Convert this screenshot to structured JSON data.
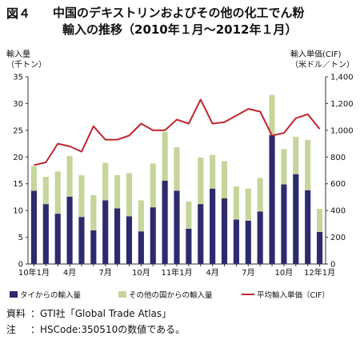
{
  "figure": {
    "label": "図４",
    "title_line1": "中国のデキストリンおよびその他の化工でん粉",
    "title_line2": "輸入の推移（2010年１月～2012年１月）"
  },
  "axis_labels": {
    "left_title": "輸入量",
    "left_unit": "（千トン）",
    "right_title": "輸入単価(CIF)",
    "right_unit": "（米ドル／トン）"
  },
  "chart_data": {
    "type": "bar",
    "stacked": true,
    "categories": [
      "2010-01",
      "2010-02",
      "2010-03",
      "2010-04",
      "2010-05",
      "2010-06",
      "2010-07",
      "2010-08",
      "2010-09",
      "2010-10",
      "2010-11",
      "2010-12",
      "2011-01",
      "2011-02",
      "2011-03",
      "2011-04",
      "2011-05",
      "2011-06",
      "2011-07",
      "2011-08",
      "2011-09",
      "2011-10",
      "2011-11",
      "2011-12",
      "2012-01"
    ],
    "x_tick_labels": [
      "10年1月",
      "",
      "",
      "4月",
      "",
      "",
      "7月",
      "",
      "",
      "10月",
      "",
      "",
      "11年1月",
      "",
      "",
      "4月",
      "",
      "",
      "7月",
      "",
      "",
      "10月",
      "",
      "",
      "12年1月"
    ],
    "series": [
      {
        "name": "タイからの輸入量",
        "axis": "left",
        "color": "#2e2a6e",
        "values": [
          13.7,
          11.2,
          9.4,
          12.6,
          8.8,
          6.3,
          11.9,
          10.4,
          8.9,
          6.1,
          10.6,
          15.6,
          13.7,
          6.6,
          11.2,
          14.1,
          12.3,
          8.3,
          8.1,
          9.8,
          24.1,
          14.9,
          16.8,
          13.8,
          6.0
        ]
      },
      {
        "name": "その他の国からの輸入量",
        "axis": "left",
        "color": "#c6d59b",
        "values": [
          4.6,
          5.1,
          7.9,
          7.6,
          7.8,
          6.6,
          7.0,
          6.2,
          8.1,
          5.8,
          8.2,
          9.1,
          8.1,
          5.1,
          8.7,
          6.3,
          6.9,
          6.2,
          6.0,
          6.3,
          7.5,
          6.6,
          7.0,
          9.4,
          4.3
        ]
      },
      {
        "name": "平均輸入単価（CIF）",
        "axis": "right",
        "type": "line",
        "color": "#c0262e",
        "values": [
          740,
          760,
          900,
          880,
          840,
          1030,
          930,
          930,
          960,
          1050,
          1000,
          1000,
          1080,
          1050,
          1230,
          1050,
          1060,
          1110,
          1160,
          1140,
          960,
          980,
          1090,
          1120,
          1010
        ]
      }
    ],
    "left_axis": {
      "ylim": [
        0,
        35
      ],
      "ticks": [
        0,
        5,
        10,
        15,
        20,
        25,
        30,
        35
      ]
    },
    "right_axis": {
      "ylim": [
        0,
        1400
      ],
      "ticks": [
        0,
        200,
        400,
        600,
        800,
        1000,
        1200,
        1400
      ],
      "tick_labels": [
        "0",
        "200",
        "400",
        "600",
        "800",
        "1,000",
        "1,200",
        "1,400"
      ]
    },
    "grid": false,
    "legend_placement": "bottom"
  },
  "notes": [
    {
      "key": "資料",
      "text": "：GTI社「Global Trade Atlas」"
    },
    {
      "key": "注",
      "text": "：HSCode:350510の数値である。"
    }
  ]
}
